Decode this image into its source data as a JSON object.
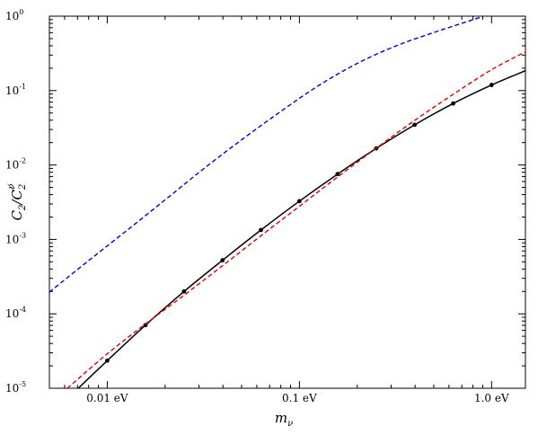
{
  "chart_data": {
    "type": "line",
    "xlabel": "m_ν",
    "ylabel": "C_2/C_2^{ν̸}",
    "xscale": "log",
    "yscale": "log",
    "xlim": [
      0.005,
      1.5
    ],
    "ylim": [
      1e-05,
      1
    ],
    "x_ticks": [
      {
        "value": 0.01,
        "label": "0.01 eV"
      },
      {
        "value": 0.1,
        "label": "0.1 eV"
      },
      {
        "value": 1.0,
        "label": "1.0 eV"
      }
    ],
    "y_ticks": [
      {
        "value": 1e-05,
        "base": "10",
        "exp": "-5"
      },
      {
        "value": 0.0001,
        "base": "10",
        "exp": "-4"
      },
      {
        "value": 0.001,
        "base": "10",
        "exp": "-3"
      },
      {
        "value": 0.01,
        "base": "10",
        "exp": "-2"
      },
      {
        "value": 0.1,
        "base": "10",
        "exp": "-1"
      },
      {
        "value": 1,
        "base": "10",
        "exp": "0"
      }
    ],
    "grid": false,
    "series": [
      {
        "style": "solid",
        "color": "#000000",
        "markers": true,
        "x": [
          0.0068,
          0.01,
          0.0158,
          0.0251,
          0.0398,
          0.0631,
          0.1,
          0.158,
          0.251,
          0.398,
          0.631,
          1.0,
          1.5
        ],
        "y": [
          9.1e-06,
          2.35e-05,
          7.05e-05,
          0.0002,
          0.000525,
          0.00134,
          0.00327,
          0.00755,
          0.0167,
          0.0347,
          0.0671,
          0.119,
          0.185
        ],
        "marker_indices": [
          1,
          2,
          3,
          4,
          5,
          6,
          7,
          8,
          9,
          10,
          11
        ]
      },
      {
        "style": "dashed",
        "color": "#dd0000",
        "markers": false,
        "x": [
          0.0062,
          0.01,
          0.0158,
          0.0251,
          0.0398,
          0.0631,
          0.1,
          0.158,
          0.251,
          0.398,
          0.631,
          1.0,
          1.5
        ],
        "y": [
          1e-05,
          2.9e-05,
          7.3e-05,
          0.000178,
          0.000443,
          0.00112,
          0.00279,
          0.00691,
          0.0168,
          0.0398,
          0.0891,
          0.191,
          0.331
        ]
      },
      {
        "style": "dashed",
        "color": "#0000dd",
        "markers": false,
        "x": [
          0.005,
          0.0079,
          0.0126,
          0.02,
          0.0316,
          0.05,
          0.0794,
          0.126,
          0.2,
          0.316,
          0.5,
          0.794,
          0.9
        ],
        "y": [
          0.000196,
          0.000506,
          0.00131,
          0.0034,
          0.00882,
          0.0218,
          0.0518,
          0.117,
          0.232,
          0.396,
          0.603,
          0.891,
          0.99
        ]
      }
    ]
  }
}
